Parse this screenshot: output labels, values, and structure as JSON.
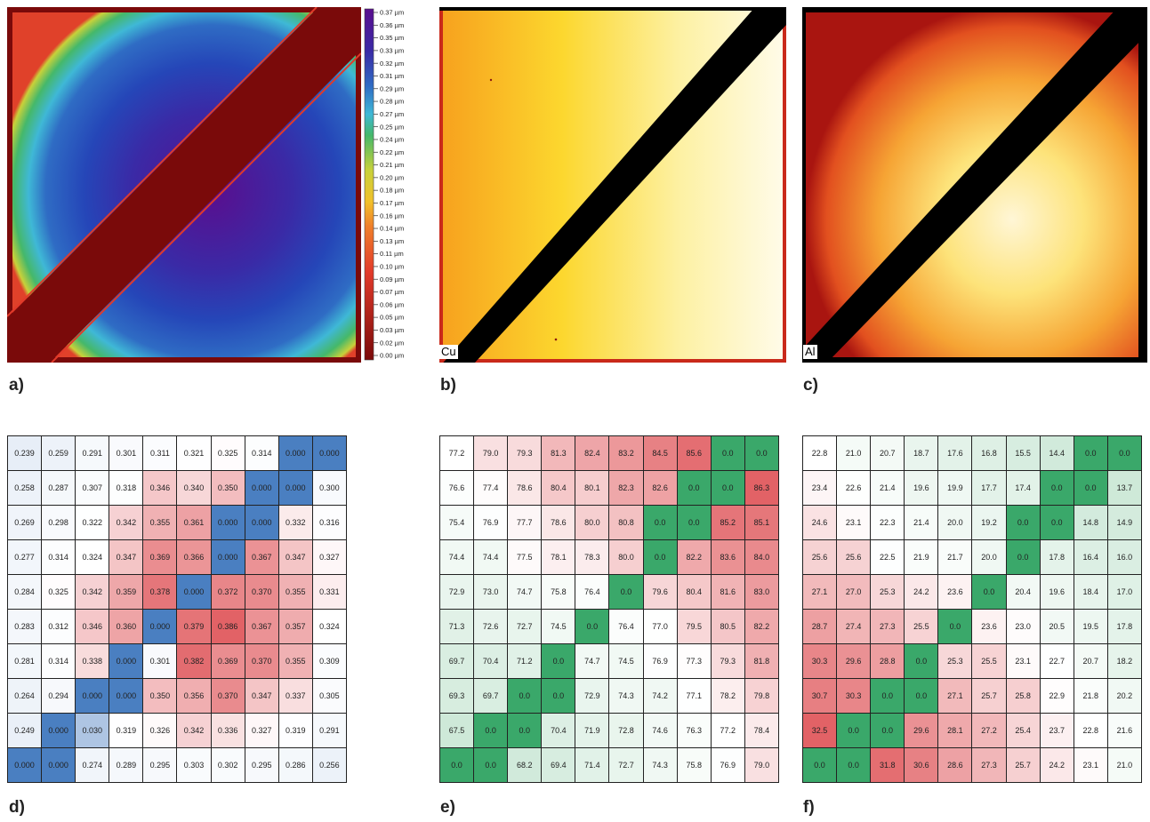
{
  "panel_labels": [
    "a)",
    "b)",
    "c)",
    "d)",
    "e)",
    "f)"
  ],
  "element_labels": {
    "b": "Cu",
    "c": "Al"
  },
  "colorbar": {
    "unit": "µm",
    "ticks": [
      "0.37 µm",
      "0.36 µm",
      "0.35 µm",
      "0.33 µm",
      "0.32 µm",
      "0.31 µm",
      "0.29 µm",
      "0.28 µm",
      "0.27 µm",
      "0.25 µm",
      "0.24 µm",
      "0.22 µm",
      "0.21 µm",
      "0.20 µm",
      "0.18 µm",
      "0.17 µm",
      "0.16 µm",
      "0.14 µm",
      "0.13 µm",
      "0.11 µm",
      "0.10 µm",
      "0.09 µm",
      "0.07 µm",
      "0.06 µm",
      "0.05 µm",
      "0.03 µm",
      "0.02 µm",
      "0.00 µm"
    ]
  },
  "colors": {
    "table_low": "#4a7fc1",
    "table_high": "#e05a5e",
    "table_zero_green": "#3aa86a",
    "mask": "#000000",
    "thickness_mask": "#7a0a0a"
  },
  "chart_data": [
    {
      "type": "heatmap",
      "panel": "d",
      "rows": [
        [
          "0.239",
          "0.259",
          "0.291",
          "0.301",
          "0.311",
          "0.321",
          "0.325",
          "0.314",
          "0.000",
          "0.000"
        ],
        [
          "0.258",
          "0.287",
          "0.307",
          "0.318",
          "0.346",
          "0.340",
          "0.350",
          "0.000",
          "0.000",
          "0.300"
        ],
        [
          "0.269",
          "0.298",
          "0.322",
          "0.342",
          "0.355",
          "0.361",
          "0.000",
          "0.000",
          "0.332",
          "0.316"
        ],
        [
          "0.277",
          "0.314",
          "0.324",
          "0.347",
          "0.369",
          "0.366",
          "0.000",
          "0.367",
          "0.347",
          "0.327"
        ],
        [
          "0.284",
          "0.325",
          "0.342",
          "0.359",
          "0.378",
          "0.000",
          "0.372",
          "0.370",
          "0.355",
          "0.331"
        ],
        [
          "0.283",
          "0.312",
          "0.346",
          "0.360",
          "0.000",
          "0.379",
          "0.386",
          "0.367",
          "0.357",
          "0.324"
        ],
        [
          "0.281",
          "0.314",
          "0.338",
          "0.000",
          "0.301",
          "0.382",
          "0.369",
          "0.370",
          "0.355",
          "0.309"
        ],
        [
          "0.264",
          "0.294",
          "0.000",
          "0.000",
          "0.350",
          "0.356",
          "0.370",
          "0.347",
          "0.337",
          "0.305"
        ],
        [
          "0.249",
          "0.000",
          "0.030",
          "0.319",
          "0.326",
          "0.342",
          "0.336",
          "0.327",
          "0.319",
          "0.291"
        ],
        [
          "0.000",
          "0.000",
          "0.274",
          "0.289",
          "0.295",
          "0.303",
          "0.302",
          "0.295",
          "0.286",
          "0.256"
        ]
      ]
    },
    {
      "type": "heatmap",
      "panel": "e",
      "rows": [
        [
          "77.2",
          "79.0",
          "79.3",
          "81.3",
          "82.4",
          "83.2",
          "84.5",
          "85.6",
          "0.0",
          "0.0"
        ],
        [
          "76.6",
          "77.4",
          "78.6",
          "80.4",
          "80.1",
          "82.3",
          "82.6",
          "0.0",
          "0.0",
          "86.3"
        ],
        [
          "75.4",
          "76.9",
          "77.7",
          "78.6",
          "80.0",
          "80.8",
          "0.0",
          "0.0",
          "85.2",
          "85.1"
        ],
        [
          "74.4",
          "74.4",
          "77.5",
          "78.1",
          "78.3",
          "80.0",
          "0.0",
          "82.2",
          "83.6",
          "84.0"
        ],
        [
          "72.9",
          "73.0",
          "74.7",
          "75.8",
          "76.4",
          "0.0",
          "79.6",
          "80.4",
          "81.6",
          "83.0"
        ],
        [
          "71.3",
          "72.6",
          "72.7",
          "74.5",
          "0.0",
          "76.4",
          "77.0",
          "79.5",
          "80.5",
          "82.2"
        ],
        [
          "69.7",
          "70.4",
          "71.2",
          "0.0",
          "74.7",
          "74.5",
          "76.9",
          "77.3",
          "79.3",
          "81.8"
        ],
        [
          "69.3",
          "69.7",
          "0.0",
          "0.0",
          "72.9",
          "74.3",
          "74.2",
          "77.1",
          "78.2",
          "79.8"
        ],
        [
          "67.5",
          "0.0",
          "0.0",
          "70.4",
          "71.9",
          "72.8",
          "74.6",
          "76.3",
          "77.2",
          "78.4"
        ],
        [
          "0.0",
          "0.0",
          "68.2",
          "69.4",
          "71.4",
          "72.7",
          "74.3",
          "75.8",
          "76.9",
          "79.0"
        ]
      ]
    },
    {
      "type": "heatmap",
      "panel": "f",
      "rows": [
        [
          "22.8",
          "21.0",
          "20.7",
          "18.7",
          "17.6",
          "16.8",
          "15.5",
          "14.4",
          "0.0",
          "0.0"
        ],
        [
          "23.4",
          "22.6",
          "21.4",
          "19.6",
          "19.9",
          "17.7",
          "17.4",
          "0.0",
          "0.0",
          "13.7"
        ],
        [
          "24.6",
          "23.1",
          "22.3",
          "21.4",
          "20.0",
          "19.2",
          "0.0",
          "0.0",
          "14.8",
          "14.9"
        ],
        [
          "25.6",
          "25.6",
          "22.5",
          "21.9",
          "21.7",
          "20.0",
          "0.0",
          "17.8",
          "16.4",
          "16.0"
        ],
        [
          "27.1",
          "27.0",
          "25.3",
          "24.2",
          "23.6",
          "0.0",
          "20.4",
          "19.6",
          "18.4",
          "17.0"
        ],
        [
          "28.7",
          "27.4",
          "27.3",
          "25.5",
          "0.0",
          "23.6",
          "23.0",
          "20.5",
          "19.5",
          "17.8"
        ],
        [
          "30.3",
          "29.6",
          "28.8",
          "0.0",
          "25.3",
          "25.5",
          "23.1",
          "22.7",
          "20.7",
          "18.2"
        ],
        [
          "30.7",
          "30.3",
          "0.0",
          "0.0",
          "27.1",
          "25.7",
          "25.8",
          "22.9",
          "21.8",
          "20.2"
        ],
        [
          "32.5",
          "0.0",
          "0.0",
          "29.6",
          "28.1",
          "27.2",
          "25.4",
          "23.7",
          "22.8",
          "21.6"
        ],
        [
          "0.0",
          "0.0",
          "31.8",
          "30.6",
          "28.6",
          "27.3",
          "25.7",
          "24.2",
          "23.1",
          "21.0"
        ]
      ]
    }
  ]
}
